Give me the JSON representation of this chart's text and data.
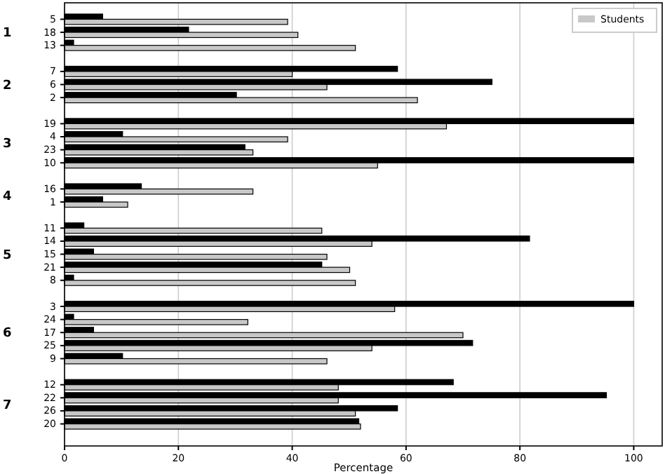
{
  "chart_data": {
    "type": "bar",
    "orientation": "horizontal",
    "xlabel": "Percentage",
    "categories": [
      "5",
      "18",
      "13",
      null,
      "7",
      "6",
      "2",
      null,
      "19",
      "4",
      "23",
      "10",
      null,
      "16",
      "1",
      null,
      "11",
      "14",
      "15",
      "21",
      "8",
      null,
      "3",
      "24",
      "17",
      "25",
      "9",
      null,
      "12",
      "22",
      "26",
      "20"
    ],
    "series": [
      {
        "color": "#000000",
        "values": [
          6.7,
          21.8,
          1.6,
          null,
          58.5,
          75.1,
          30.2,
          null,
          100,
          10.2,
          31.7,
          100,
          null,
          13.5,
          6.7,
          null,
          3.4,
          81.7,
          5.1,
          45.2,
          1.6,
          null,
          100,
          1.6,
          5.1,
          71.7,
          10.2,
          null,
          68.3,
          95.2,
          58.5,
          51.7
        ]
      },
      {
        "name": "Students",
        "color": "#c8c8c8",
        "values": [
          39.2,
          41.0,
          51.1,
          null,
          40.0,
          46.1,
          62.0,
          null,
          67.1,
          39.2,
          33.1,
          55.0,
          null,
          33.1,
          11.1,
          null,
          45.2,
          54.0,
          46.1,
          50.1,
          51.1,
          null,
          58.0,
          32.2,
          70.0,
          54.0,
          46.1,
          null,
          48.1,
          48.1,
          51.1,
          52.0
        ]
      }
    ],
    "xlim": [
      0,
      105
    ],
    "xticks": [
      0,
      20,
      40,
      60,
      80,
      100
    ],
    "grid": "x",
    "legend": "top right",
    "annotations": [
      "1",
      "2",
      "3",
      "4",
      "5",
      "6",
      "7"
    ]
  }
}
